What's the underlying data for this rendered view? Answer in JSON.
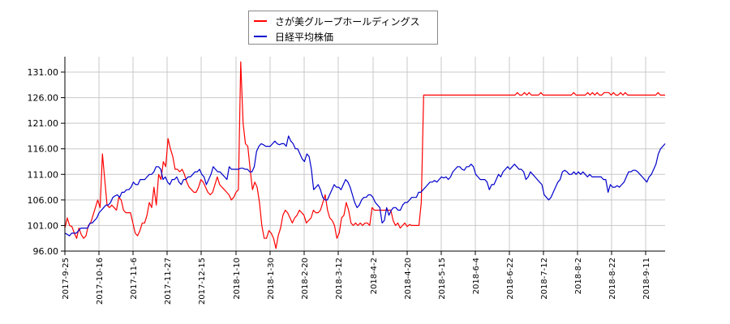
{
  "legend": {
    "items": [
      {
        "label": "さが美グループホールディングス",
        "color": "#ff0000"
      },
      {
        "label": "日経平均株価",
        "color": "#0000cc"
      }
    ]
  },
  "chart_data": {
    "type": "line",
    "title": "",
    "xlabel": "",
    "ylabel": "",
    "ylim": [
      96,
      131
    ],
    "grid": true,
    "legend_position": "top",
    "y_ticks": [
      "96.00",
      "101.00",
      "106.00",
      "111.00",
      "116.00",
      "121.00",
      "126.00",
      "131.00"
    ],
    "x_ticks": [
      "2017-9-25",
      "2017-10-16",
      "2017-11-6",
      "2017-11-27",
      "2017-12-15",
      "2018-1-10",
      "2018-1-30",
      "2018-2-20",
      "2018-3-12",
      "2018-4-2",
      "2018-4-20",
      "2018-5-15",
      "2018-6-4",
      "2018-6-22",
      "2018-7-12",
      "2018-8-2",
      "2018-8-22",
      "2018-9-11"
    ],
    "series": [
      {
        "name": "さが美グループホールディングス",
        "color": "#ff0000",
        "values": [
          100.5,
          102.5,
          101.0,
          100.8,
          99.5,
          98.5,
          100.5,
          99.2,
          98.5,
          99.0,
          101.0,
          101.5,
          103.0,
          104.5,
          106.0,
          104.5,
          115.0,
          110.0,
          105.0,
          104.5,
          105.0,
          104.5,
          104.0,
          106.5,
          106.0,
          104.0,
          103.5,
          103.5,
          103.5,
          101.5,
          99.5,
          99.0,
          100.0,
          101.5,
          101.5,
          103.0,
          105.5,
          104.5,
          108.5,
          105.0,
          111.0,
          110.0,
          113.5,
          112.5,
          118.0,
          116.0,
          114.5,
          112.0,
          112.0,
          111.5,
          112.0,
          111.0,
          109.5,
          108.5,
          108.0,
          107.5,
          107.5,
          108.5,
          110.0,
          109.5,
          108.5,
          107.5,
          107.0,
          107.5,
          109.0,
          110.5,
          109.0,
          108.5,
          108.0,
          107.5,
          107.0,
          106.0,
          106.5,
          107.5,
          108.0,
          133.0,
          121.0,
          117.0,
          116.5,
          112.0,
          108.0,
          109.5,
          108.5,
          105.5,
          101.0,
          98.5,
          98.5,
          100.0,
          99.5,
          98.5,
          96.5,
          99.0,
          100.5,
          103.0,
          104.0,
          103.5,
          102.5,
          101.5,
          102.5,
          103.0,
          104.0,
          103.5,
          103.0,
          101.5,
          102.0,
          102.5,
          104.0,
          103.5,
          103.5,
          104.0,
          105.5,
          107.0,
          104.0,
          102.5,
          102.0,
          101.0,
          98.5,
          99.5,
          102.5,
          103.0,
          105.5,
          104.0,
          101.5,
          101.0,
          101.5,
          101.0,
          101.5,
          101.0,
          101.5,
          101.5,
          101.0,
          104.5,
          104.0,
          104.0,
          104.0,
          104.0,
          104.0,
          104.0,
          104.0,
          104.0,
          102.0,
          101.0,
          101.5,
          100.5,
          101.0,
          101.5,
          100.8,
          101.2,
          101.0,
          101.0,
          101.0,
          101.0,
          105.5,
          126.5,
          126.5,
          126.5,
          126.5,
          126.5,
          126.5,
          126.5,
          126.5,
          126.5,
          126.5,
          126.5,
          126.5,
          126.5,
          126.5,
          126.5,
          126.5,
          126.5,
          126.5,
          126.5,
          126.5,
          126.5,
          126.5,
          126.5,
          126.5,
          126.5,
          126.5,
          126.5,
          126.5,
          126.5,
          126.5,
          126.5,
          126.5,
          126.5,
          126.5,
          126.5,
          126.5,
          126.5,
          126.5,
          126.5,
          126.5,
          127.0,
          126.5,
          126.5,
          127.0,
          126.5,
          127.0,
          126.5,
          126.5,
          126.5,
          126.5,
          127.0,
          126.5,
          126.5,
          126.5,
          126.5,
          126.5,
          126.5,
          126.5,
          126.5,
          126.5,
          126.5,
          126.5,
          126.5,
          126.5,
          127.0,
          126.5,
          126.5,
          126.5,
          126.5,
          126.5,
          127.0,
          126.5,
          127.0,
          126.5,
          127.0,
          126.5,
          126.5,
          127.0,
          127.0,
          127.0,
          126.5,
          127.0,
          126.5,
          126.5,
          127.0,
          126.5,
          127.0,
          126.5,
          126.5,
          126.5,
          126.5,
          126.5,
          126.5,
          126.5,
          126.5,
          126.5,
          126.5,
          126.5,
          126.5,
          126.5,
          127.0,
          126.5,
          126.5,
          126.5
        ]
      },
      {
        "name": "日経平均株価",
        "color": "#0000cc",
        "values": [
          99.5,
          99.3,
          99.0,
          99.5,
          99.5,
          99.5,
          100.0,
          100.5,
          100.5,
          100.5,
          100.5,
          101.5,
          101.5,
          102.0,
          102.5,
          103.5,
          104.0,
          104.5,
          105.0,
          105.0,
          105.5,
          106.5,
          106.8,
          107.0,
          106.5,
          107.5,
          107.5,
          108.0,
          108.0,
          108.5,
          109.5,
          109.0,
          109.0,
          110.0,
          110.0,
          110.0,
          110.5,
          111.0,
          111.0,
          111.5,
          112.5,
          112.5,
          112.0,
          110.0,
          110.5,
          109.5,
          109.0,
          110.0,
          110.0,
          110.5,
          109.5,
          109.0,
          110.0,
          110.0,
          110.5,
          110.5,
          111.0,
          111.5,
          111.5,
          112.0,
          111.0,
          110.5,
          109.0,
          110.0,
          111.0,
          112.5,
          112.0,
          111.5,
          111.5,
          111.0,
          110.5,
          110.0,
          112.5,
          112.0,
          112.0,
          112.0,
          112.0,
          112.2,
          112.2,
          112.0,
          112.0,
          111.5,
          111.5,
          112.5,
          115.5,
          116.5,
          117.0,
          116.8,
          116.5,
          116.5,
          116.5,
          117.0,
          117.5,
          117.0,
          116.8,
          117.0,
          117.0,
          116.5,
          118.5,
          117.5,
          117.0,
          116.0,
          116.0,
          115.0,
          114.0,
          113.5,
          115.0,
          114.5,
          112.0,
          108.0,
          108.5,
          109.0,
          108.0,
          106.5,
          106.0,
          106.0,
          107.0,
          108.0,
          109.0,
          108.5,
          108.5,
          108.0,
          109.0,
          110.0,
          109.5,
          108.5,
          107.0,
          105.5,
          104.5,
          105.0,
          106.0,
          106.5,
          106.5,
          107.0,
          107.0,
          106.5,
          105.5,
          105.0,
          104.5,
          101.5,
          102.0,
          104.5,
          103.0,
          104.0,
          104.5,
          104.5,
          104.0,
          104.0,
          105.0,
          105.5,
          105.5,
          106.0,
          106.5,
          106.5,
          106.5,
          107.5,
          107.5,
          108.0,
          108.5,
          109.0,
          109.5,
          109.5,
          109.8,
          109.5,
          110.0,
          110.5,
          110.3,
          110.5,
          110.0,
          110.5,
          111.5,
          112.0,
          112.5,
          112.5,
          112.0,
          111.8,
          112.5,
          112.5,
          113.0,
          112.5,
          111.0,
          110.5,
          110.0,
          110.0,
          110.0,
          109.5,
          108.0,
          109.0,
          109.0,
          110.0,
          111.0,
          110.5,
          111.5,
          112.0,
          112.5,
          112.0,
          112.5,
          113.0,
          112.5,
          112.0,
          112.0,
          111.5,
          110.0,
          110.5,
          111.5,
          111.0,
          110.5,
          110.0,
          109.5,
          109.0,
          107.0,
          106.5,
          106.0,
          106.5,
          107.5,
          108.5,
          109.5,
          110.0,
          111.5,
          111.8,
          111.5,
          111.0,
          111.0,
          111.5,
          111.0,
          111.5,
          111.0,
          111.5,
          111.0,
          110.5,
          111.0,
          110.5,
          110.5,
          110.5,
          110.5,
          110.5,
          110.0,
          110.0,
          107.5,
          109.0,
          108.5,
          108.5,
          108.8,
          108.5,
          109.0,
          109.5,
          110.5,
          111.5,
          111.5,
          111.8,
          111.8,
          111.5,
          111.0,
          110.5,
          110.0,
          109.5,
          110.5,
          111.0,
          112.0,
          113.0,
          115.0,
          116.0,
          116.5,
          117.0
        ]
      }
    ]
  }
}
